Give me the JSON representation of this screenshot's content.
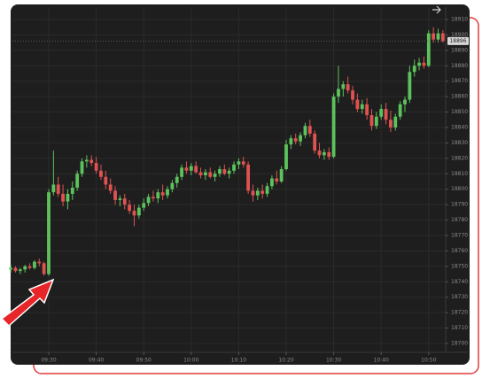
{
  "chart_data": {
    "type": "candlestick",
    "up_color": "#5cc25c",
    "down_color": "#e05252",
    "grid": true,
    "ylim": [
      18696,
      18914
    ],
    "yticks": [
      18700,
      18710,
      18720,
      18730,
      18740,
      18750,
      18760,
      18770,
      18780,
      18790,
      18800,
      18810,
      18820,
      18830,
      18840,
      18850,
      18860,
      18870,
      18880,
      18890,
      18900,
      18910
    ],
    "xticks": [
      "09:30",
      "09:40",
      "09:50",
      "10:00",
      "10:10",
      "10:20",
      "10:30",
      "10:40",
      "10:50"
    ],
    "last_price": 18896,
    "x": [
      "09:22",
      "09:23",
      "09:24",
      "09:25",
      "09:26",
      "09:27",
      "09:28",
      "09:29",
      "09:30",
      "09:31",
      "09:32",
      "09:33",
      "09:34",
      "09:35",
      "09:36",
      "09:37",
      "09:38",
      "09:39",
      "09:40",
      "09:41",
      "09:42",
      "09:43",
      "09:44",
      "09:45",
      "09:46",
      "09:47",
      "09:48",
      "09:49",
      "09:50",
      "09:51",
      "09:52",
      "09:53",
      "09:54",
      "09:55",
      "09:56",
      "09:57",
      "09:58",
      "09:59",
      "10:00",
      "10:01",
      "10:02",
      "10:03",
      "10:04",
      "10:05",
      "10:06",
      "10:07",
      "10:08",
      "10:09",
      "10:10",
      "10:11",
      "10:12",
      "10:13",
      "10:14",
      "10:15",
      "10:16",
      "10:17",
      "10:18",
      "10:19",
      "10:20",
      "10:21",
      "10:22",
      "10:23",
      "10:24",
      "10:25",
      "10:26",
      "10:27",
      "10:28",
      "10:29",
      "10:30",
      "10:31",
      "10:32",
      "10:33",
      "10:34",
      "10:35",
      "10:36",
      "10:37",
      "10:38",
      "10:39",
      "10:40",
      "10:41",
      "10:42",
      "10:43",
      "10:44",
      "10:45",
      "10:46",
      "10:47",
      "10:48",
      "10:49",
      "10:50",
      "10:51",
      "10:52",
      "10:53"
    ],
    "candles": [
      [
        18748,
        18751,
        18746,
        18749
      ],
      [
        18749,
        18750,
        18746,
        18747
      ],
      [
        18747,
        18749,
        18745,
        18748
      ],
      [
        18748,
        18751,
        18746,
        18750
      ],
      [
        18750,
        18752,
        18748,
        18749
      ],
      [
        18749,
        18754,
        18748,
        18753
      ],
      [
        18753,
        18755,
        18750,
        18752
      ],
      [
        18752,
        18753,
        18744,
        18745
      ],
      [
        18745,
        18800,
        18744,
        18798
      ],
      [
        18798,
        18825,
        18796,
        18803
      ],
      [
        18803,
        18808,
        18795,
        18797
      ],
      [
        18797,
        18803,
        18789,
        18792
      ],
      [
        18792,
        18800,
        18787,
        18797
      ],
      [
        18797,
        18805,
        18793,
        18801
      ],
      [
        18801,
        18812,
        18799,
        18810
      ],
      [
        18810,
        18820,
        18808,
        18818
      ],
      [
        18818,
        18822,
        18814,
        18819
      ],
      [
        18819,
        18822,
        18815,
        18817
      ],
      [
        18817,
        18821,
        18810,
        18812
      ],
      [
        18812,
        18816,
        18806,
        18808
      ],
      [
        18808,
        18812,
        18800,
        18803
      ],
      [
        18803,
        18807,
        18797,
        18799
      ],
      [
        18799,
        18802,
        18790,
        18793
      ],
      [
        18793,
        18796,
        18789,
        18794
      ],
      [
        18794,
        18797,
        18787,
        18790
      ],
      [
        18790,
        18793,
        18784,
        18786
      ],
      [
        18786,
        18790,
        18776,
        18783
      ],
      [
        18783,
        18790,
        18781,
        18788
      ],
      [
        18788,
        18794,
        18786,
        18791
      ],
      [
        18791,
        18797,
        18789,
        18795
      ],
      [
        18795,
        18799,
        18792,
        18794
      ],
      [
        18794,
        18800,
        18791,
        18798
      ],
      [
        18798,
        18803,
        18793,
        18796
      ],
      [
        18796,
        18802,
        18794,
        18800
      ],
      [
        18800,
        18806,
        18798,
        18804
      ],
      [
        18804,
        18810,
        18801,
        18808
      ],
      [
        18808,
        18816,
        18806,
        18814
      ],
      [
        18814,
        18818,
        18810,
        18812
      ],
      [
        18812,
        18817,
        18809,
        18815
      ],
      [
        18815,
        18818,
        18810,
        18811
      ],
      [
        18811,
        18814,
        18807,
        18809
      ],
      [
        18809,
        18813,
        18806,
        18811
      ],
      [
        18811,
        18814,
        18807,
        18808
      ],
      [
        18808,
        18812,
        18805,
        18810
      ],
      [
        18810,
        18815,
        18808,
        18813
      ],
      [
        18813,
        18816,
        18809,
        18810
      ],
      [
        18810,
        18814,
        18807,
        18812
      ],
      [
        18812,
        18818,
        18810,
        18816
      ],
      [
        18816,
        18820,
        18813,
        18818
      ],
      [
        18818,
        18821,
        18814,
        18816
      ],
      [
        18816,
        18818,
        18797,
        18799
      ],
      [
        18799,
        18803,
        18792,
        18796
      ],
      [
        18796,
        18801,
        18793,
        18799
      ],
      [
        18799,
        18803,
        18794,
        18797
      ],
      [
        18797,
        18804,
        18795,
        18802
      ],
      [
        18802,
        18809,
        18800,
        18807
      ],
      [
        18807,
        18812,
        18803,
        18805
      ],
      [
        18805,
        18815,
        18804,
        18813
      ],
      [
        18813,
        18832,
        18812,
        18829
      ],
      [
        18829,
        18835,
        18826,
        18833
      ],
      [
        18833,
        18836,
        18829,
        18831
      ],
      [
        18831,
        18837,
        18828,
        18835
      ],
      [
        18835,
        18843,
        18833,
        18841
      ],
      [
        18841,
        18845,
        18834,
        18836
      ],
      [
        18836,
        18838,
        18823,
        18825
      ],
      [
        18825,
        18830,
        18820,
        18822
      ],
      [
        18822,
        18826,
        18819,
        18824
      ],
      [
        18824,
        18827,
        18819,
        18821
      ],
      [
        18821,
        18862,
        18820,
        18860
      ],
      [
        18860,
        18880,
        18856,
        18865
      ],
      [
        18865,
        18870,
        18860,
        18868
      ],
      [
        18868,
        18873,
        18862,
        18864
      ],
      [
        18864,
        18867,
        18855,
        18858
      ],
      [
        18858,
        18862,
        18850,
        18852
      ],
      [
        18852,
        18858,
        18849,
        18855
      ],
      [
        18855,
        18859,
        18845,
        18848
      ],
      [
        18848,
        18852,
        18838,
        18841
      ],
      [
        18841,
        18850,
        18839,
        18847
      ],
      [
        18847,
        18855,
        18845,
        18852
      ],
      [
        18852,
        18856,
        18842,
        18845
      ],
      [
        18845,
        18851,
        18837,
        18840
      ],
      [
        18840,
        18849,
        18838,
        18847
      ],
      [
        18847,
        18857,
        18845,
        18855
      ],
      [
        18855,
        18860,
        18850,
        18858
      ],
      [
        18858,
        18880,
        18856,
        18876
      ],
      [
        18876,
        18884,
        18873,
        18880
      ],
      [
        18880,
        18885,
        18877,
        18882
      ],
      [
        18882,
        18886,
        18878,
        18880
      ],
      [
        18880,
        18903,
        18879,
        18901
      ],
      [
        18901,
        18905,
        18895,
        18897
      ],
      [
        18897,
        18904,
        18895,
        18901
      ],
      [
        18901,
        18903,
        18895,
        18896
      ]
    ]
  }
}
